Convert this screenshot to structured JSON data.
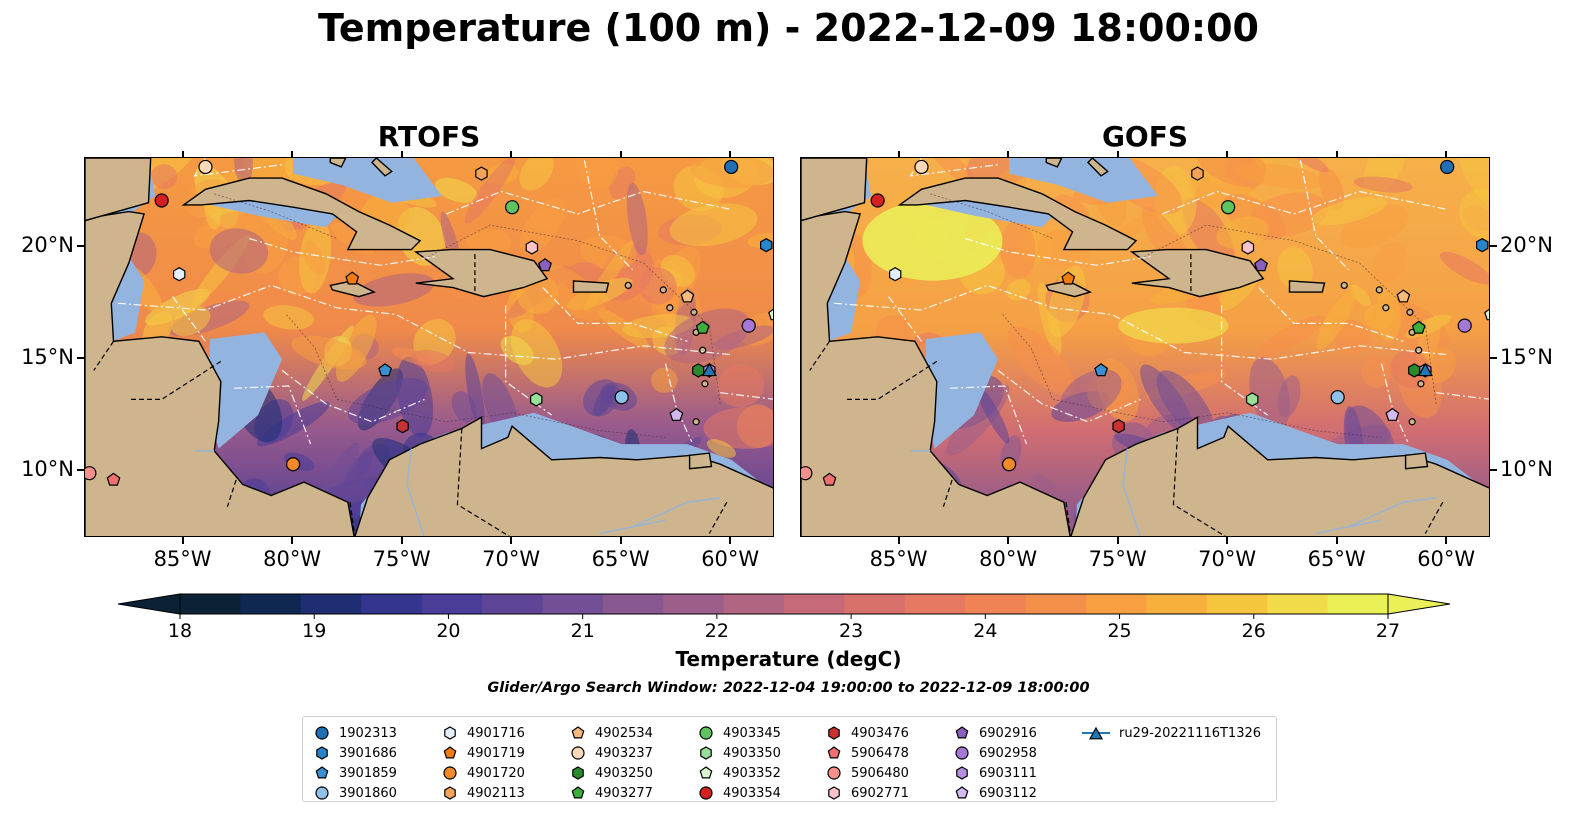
{
  "title": "Temperature (100 m) - 2022-12-09 18:00:00",
  "panels": [
    {
      "id": "rtofs",
      "title": "RTOFS"
    },
    {
      "id": "gofs",
      "title": "GOFS"
    }
  ],
  "map": {
    "lon_range": [
      -89.5,
      -58.0
    ],
    "lat_range": [
      7.0,
      24.0
    ],
    "lon_ticks": [
      "85°W",
      "80°W",
      "75°W",
      "70°W",
      "65°W",
      "60°W"
    ],
    "lon_tick_values": [
      -85,
      -80,
      -75,
      -70,
      -65,
      -60
    ],
    "lat_ticks": [
      "10°N",
      "15°N",
      "20°N"
    ],
    "lat_tick_values": [
      10,
      15,
      20
    ],
    "land_color": "#cfb58d",
    "shelf_color": "#94b4e0",
    "deep_color": "#06202e"
  },
  "colorbar": {
    "label": "Temperature (degC)",
    "min": 18,
    "max": 27,
    "ticks": [
      "18",
      "19",
      "20",
      "21",
      "22",
      "23",
      "24",
      "25",
      "26",
      "27"
    ],
    "colors": [
      "#0b2236",
      "#0f2851",
      "#1f2e73",
      "#33358f",
      "#4a3d98",
      "#5f4597",
      "#734f95",
      "#885990",
      "#9c5f8a",
      "#b16582",
      "#c66a79",
      "#d8706c",
      "#e67961",
      "#f08355",
      "#f5904a",
      "#f89f41",
      "#f8b03c",
      "#f6c540",
      "#f1db4a",
      "#eaf058"
    ]
  },
  "search_window": "Glider/Argo Search Window: 2022-12-04 19:00:00 to 2022-12-09 18:00:00",
  "floats": [
    {
      "id": "1902313",
      "marker": "circle",
      "color": "#1f6fb4",
      "lon": -60.0,
      "lat": 23.6
    },
    {
      "id": "3901686",
      "marker": "hexagon",
      "color": "#2a84c8",
      "lon": -58.4,
      "lat": 20.1
    },
    {
      "id": "3901859",
      "marker": "pentagon",
      "color": "#3a8fd0",
      "lon": -75.8,
      "lat": 14.5
    },
    {
      "id": "3901860",
      "marker": "circle",
      "color": "#8fc2ea",
      "lon": -65.0,
      "lat": 13.3
    },
    {
      "id": "4901716",
      "marker": "hexagon",
      "color": "#e4f0fb",
      "lon": -85.2,
      "lat": 18.8
    },
    {
      "id": "4901719",
      "marker": "pentagon",
      "color": "#f07c10",
      "lon": -77.3,
      "lat": 18.6
    },
    {
      "id": "4901720",
      "marker": "circle",
      "color": "#f08a2a",
      "lon": -80.0,
      "lat": 10.3
    },
    {
      "id": "4902113",
      "marker": "hexagon",
      "color": "#f5a35a",
      "lon": -71.4,
      "lat": 23.3
    },
    {
      "id": "4902534",
      "marker": "pentagon",
      "color": "#f7bb80",
      "lon": -62.0,
      "lat": 17.8
    },
    {
      "id": "4903237",
      "marker": "circle",
      "color": "#fbd9b8",
      "lon": -84.0,
      "lat": 23.6
    },
    {
      "id": "4903250",
      "marker": "hexagon",
      "color": "#2b8a2b",
      "lon": -61.5,
      "lat": 14.5
    },
    {
      "id": "4903277",
      "marker": "pentagon",
      "color": "#3cae3c",
      "lon": -61.3,
      "lat": 16.4
    },
    {
      "id": "4903345",
      "marker": "circle",
      "color": "#5fc45f",
      "lon": -70.0,
      "lat": 21.8
    },
    {
      "id": "4903350",
      "marker": "hexagon",
      "color": "#98e098",
      "lon": -68.9,
      "lat": 13.2
    },
    {
      "id": "4903352",
      "marker": "pentagon",
      "color": "#d6f7d0",
      "lon": -58.0,
      "lat": 17.0
    },
    {
      "id": "4903354",
      "marker": "circle",
      "color": "#d42020",
      "lon": -86.0,
      "lat": 22.1
    },
    {
      "id": "4903476",
      "marker": "hexagon",
      "color": "#c83232",
      "lon": -75.0,
      "lat": 12.0
    },
    {
      "id": "5906478",
      "marker": "pentagon",
      "color": "#f07070",
      "lon": -88.2,
      "lat": 9.6
    },
    {
      "id": "5906480",
      "marker": "circle",
      "color": "#f5918a",
      "lon": -89.3,
      "lat": 9.9
    },
    {
      "id": "6902771",
      "marker": "hexagon",
      "color": "#fbc3c8",
      "lon": -69.1,
      "lat": 20.0
    },
    {
      "id": "6902916",
      "marker": "pentagon",
      "color": "#8a5fbe",
      "lon": -68.5,
      "lat": 19.2
    },
    {
      "id": "6902958",
      "marker": "circle",
      "color": "#a678d6",
      "lon": -59.2,
      "lat": 16.5
    },
    {
      "id": "6903111",
      "marker": "hexagon",
      "color": "#b590e0",
      "lon": -61.0,
      "lat": 14.5
    },
    {
      "id": "6903112",
      "marker": "pentagon",
      "color": "#d4b8f0",
      "lon": -62.5,
      "lat": 12.5
    },
    {
      "id": "ru29-20221116T1326",
      "marker": "triangle-line",
      "color": "#1f77b4",
      "lon": -61.0,
      "lat": 14.5
    }
  ]
}
